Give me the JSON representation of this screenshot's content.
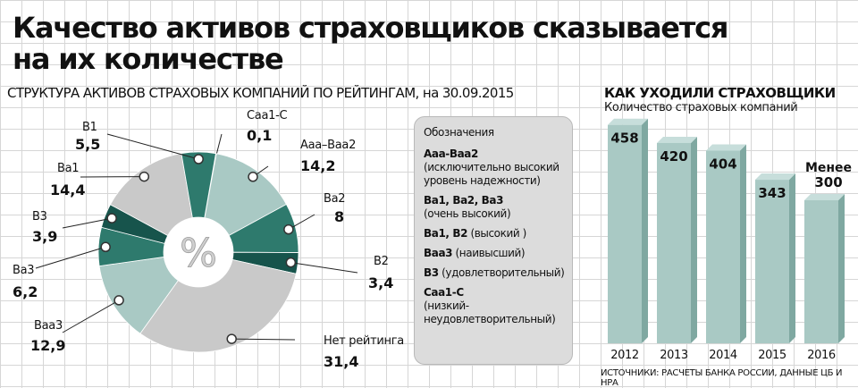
{
  "header": {
    "title_line1": "Качество активов страховщиков сказывается",
    "title_line2": "на их количестве"
  },
  "chart_data": [
    {
      "type": "pie",
      "title_main": "СТРУКТУРА АКТИВОВ СТРАХОВЫХ КОМПАНИЙ ПО РЕЙТИНГАМ,",
      "title_date": " на 30.09.2015",
      "center_label": "%",
      "slices": [
        {
          "label": "Caa1-C",
          "value": 0.1,
          "value_text": "0,1",
          "color": "#2e7a6d"
        },
        {
          "label": "Aaa–Baa2",
          "value": 14.2,
          "value_text": "14,2",
          "color": "#a9c9c4"
        },
        {
          "label": "Ba2",
          "value": 8.0,
          "value_text": "8",
          "color": "#2e7a6d"
        },
        {
          "label": "B2",
          "value": 3.4,
          "value_text": "3,4",
          "color": "#17544c"
        },
        {
          "label": "Нет рейтинга",
          "value": 31.4,
          "value_text": "31,4",
          "color": "#c9c9c9"
        },
        {
          "label": "Baa3",
          "value": 12.9,
          "value_text": "12,9",
          "color": "#a9c9c4"
        },
        {
          "label": "Ba3",
          "value": 6.2,
          "value_text": "6,2",
          "color": "#2e7a6d"
        },
        {
          "label": "B3",
          "value": 3.9,
          "value_text": "3,9",
          "color": "#17544c"
        },
        {
          "label": "Ba1",
          "value": 14.4,
          "value_text": "14,4",
          "color": "#c9c9c9"
        },
        {
          "label": "B1",
          "value": 5.5,
          "value_text": "5,5",
          "color": "#2e7a6d"
        }
      ]
    },
    {
      "type": "bar",
      "title": "КАК УХОДИЛИ СТРАХОВЩИКИ",
      "ylabel": "Количество страховых компаний",
      "categories": [
        "2012",
        "2013",
        "2014",
        "2015",
        "2016"
      ],
      "values": [
        458,
        420,
        404,
        343,
        300
      ],
      "value_labels": [
        "458",
        "420",
        "404",
        "343",
        "Менее 300"
      ],
      "ylim": [
        0,
        480
      ],
      "color": "#a9c9c4"
    }
  ],
  "legend": {
    "title": "Обозначения",
    "items": [
      {
        "code": "Aaa-Baa2",
        "desc": "(исключительно высокий уровень надежности)"
      },
      {
        "code": "Ba1, Ba2, Ba3",
        "desc": "(очень высокий)"
      },
      {
        "code": "Ba1, B2",
        "desc": " (высокий )"
      },
      {
        "code": "Baa3",
        "desc": " (наивысший)"
      },
      {
        "code": "B3",
        "desc": " (удовлетворительный)"
      },
      {
        "code": "Caa1-C",
        "desc": "(низкий-неудовлетворительный)"
      }
    ]
  },
  "source": "ИСТОЧНИКИ: РАСЧЕТЫ БАНКА РОССИИ, ДАННЫЕ ЦБ И НРА"
}
